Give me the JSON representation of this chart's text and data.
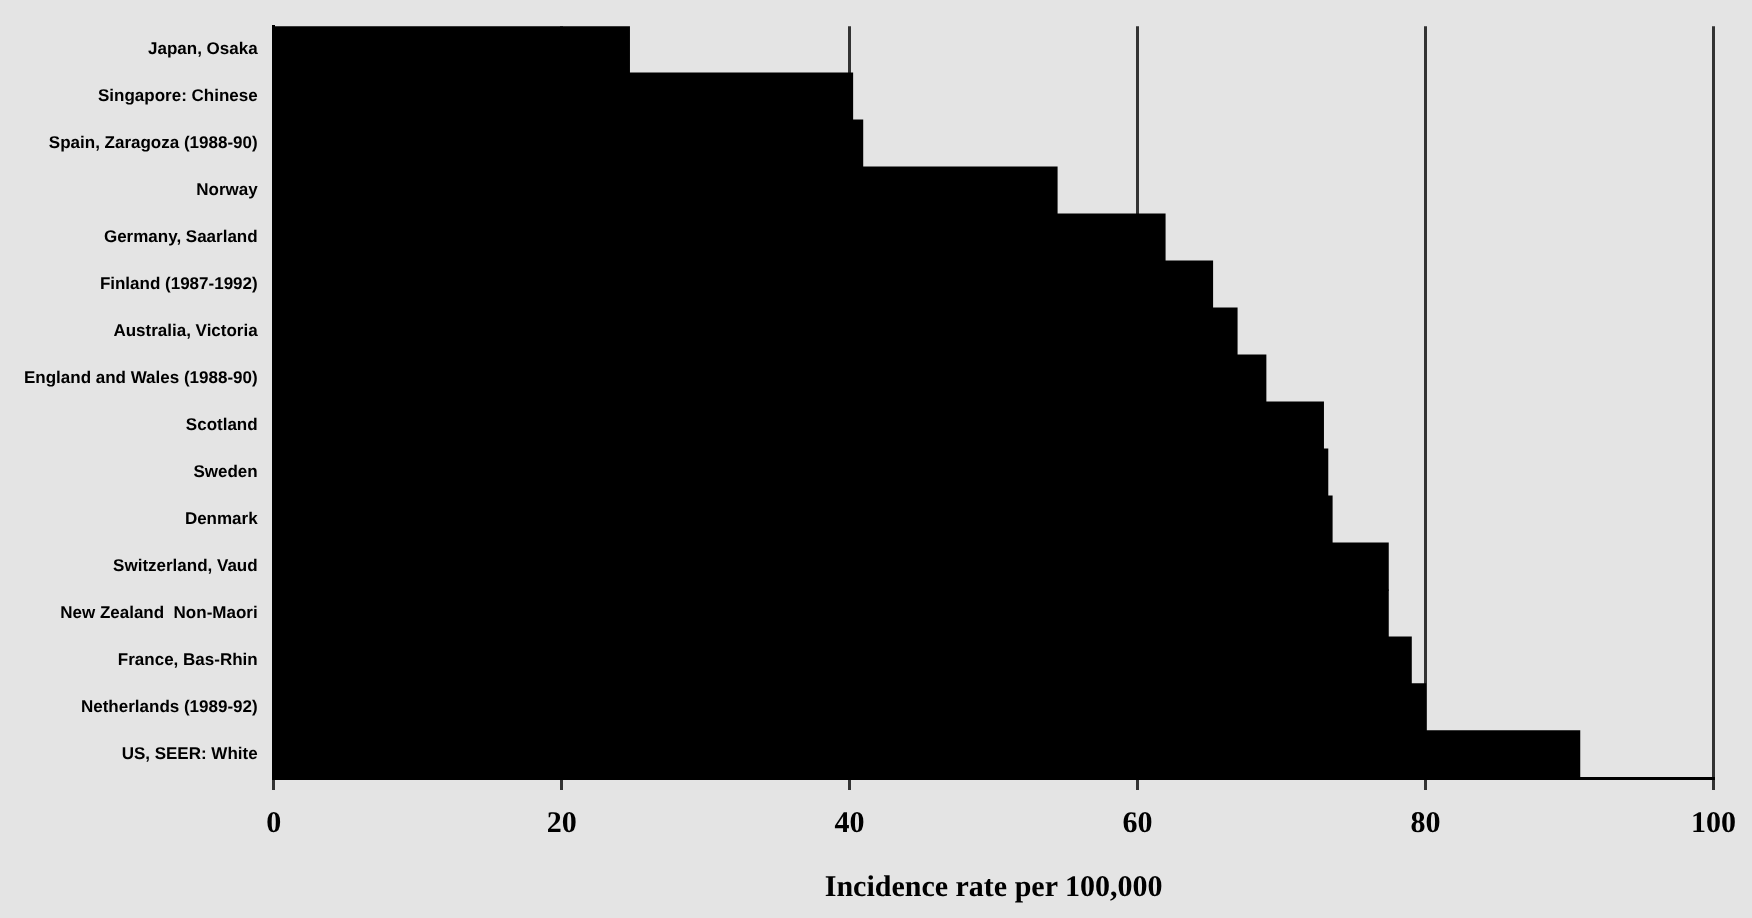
{
  "chart_data": {
    "type": "bar",
    "orientation": "horizontal",
    "xlabel": "Incidence rate per 100,000",
    "categories": [
      "Japan, Osaka",
      "Singapore: Chinese",
      "Spain, Zaragoza (1988-90)",
      "Norway",
      "Germany, Saarland",
      "Finland (1987-1992)",
      "Australia, Victoria",
      "England and Wales (1988-90)",
      "Scotland",
      "Sweden",
      "Denmark",
      "Switzerland, Vaud",
      "New Zealand  Non-Maori",
      "France, Bas-Rhin",
      "Netherlands (1989-92)",
      "US, SEER: White"
    ],
    "values": [
      24.7,
      40.2,
      40.9,
      54.4,
      61.9,
      65.2,
      66.9,
      68.9,
      72.9,
      73.2,
      73.5,
      77.4,
      77.4,
      79.0,
      80.0,
      90.7
    ],
    "color": "#000000",
    "xlim": [
      0,
      100
    ],
    "xticks": [
      0,
      20,
      40,
      60,
      80,
      100
    ],
    "grid": "x",
    "legend": false
  }
}
